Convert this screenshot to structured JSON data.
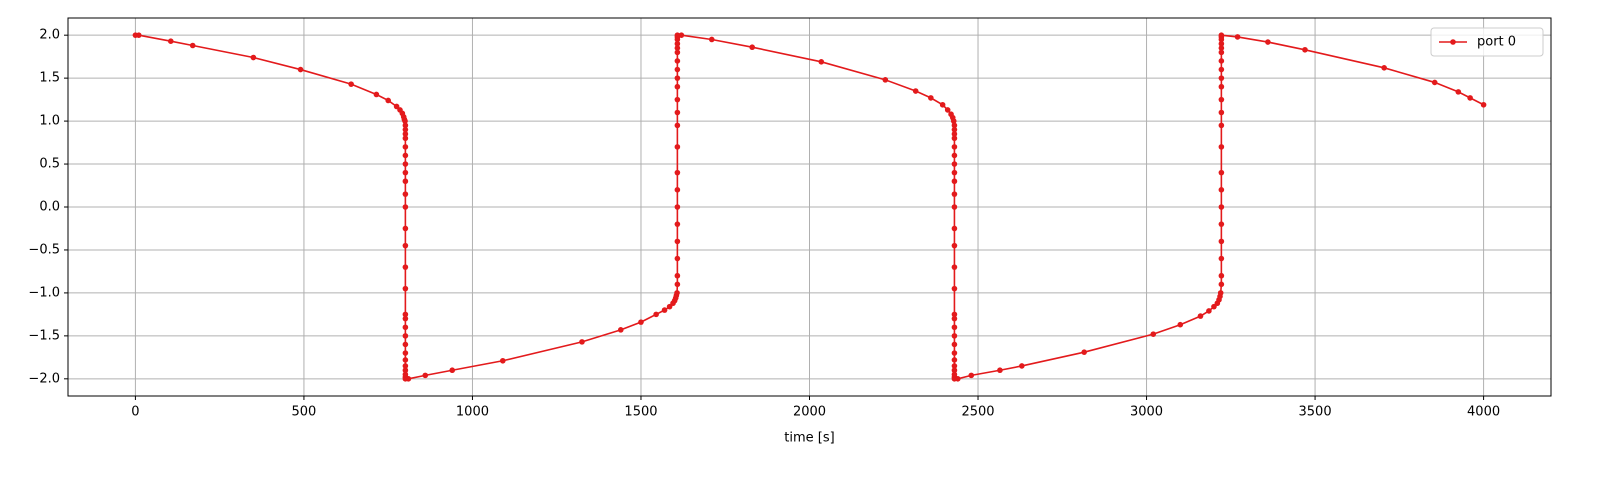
{
  "chart_data": {
    "type": "line",
    "xlabel": "time [s]",
    "x": [
      0,
      10,
      105,
      170,
      350,
      490,
      640,
      715,
      750,
      775,
      785,
      792,
      796,
      798,
      800,
      801,
      801,
      801,
      801,
      801,
      801,
      801,
      801,
      801,
      801,
      801,
      801,
      801,
      801,
      801,
      801,
      801,
      801,
      801,
      801,
      801,
      801,
      801,
      801,
      801,
      801,
      801,
      810,
      860,
      940,
      1090,
      1325,
      1440,
      1500,
      1545,
      1570,
      1585,
      1595,
      1600,
      1603,
      1605,
      1607,
      1608,
      1608,
      1608,
      1608,
      1608,
      1608,
      1608,
      1608,
      1608,
      1608,
      1608,
      1608,
      1608,
      1608,
      1608,
      1608,
      1608,
      1608,
      1608,
      1608,
      1608,
      1608,
      1620,
      1710,
      1830,
      2035,
      2225,
      2315,
      2360,
      2395,
      2410,
      2420,
      2425,
      2428,
      2430,
      2430,
      2430,
      2430,
      2430,
      2430,
      2430,
      2430,
      2430,
      2430,
      2430,
      2430,
      2430,
      2430,
      2430,
      2430,
      2430,
      2430,
      2430,
      2430,
      2430,
      2430,
      2430,
      2430,
      2430,
      2430,
      2430,
      2440,
      2480,
      2565,
      2630,
      2815,
      3020,
      3100,
      3160,
      3185,
      3200,
      3210,
      3215,
      3218,
      3220,
      3222,
      3222,
      3222,
      3222,
      3222,
      3222,
      3222,
      3222,
      3222,
      3222,
      3222,
      3222,
      3222,
      3222,
      3222,
      3222,
      3222,
      3222,
      3222,
      3222,
      3222,
      3222,
      3270,
      3360,
      3470,
      3705,
      3855,
      3925,
      3960,
      4000
    ],
    "series": [
      {
        "name": "port 0",
        "color": "#e31a1c",
        "values": [
          2.0,
          2.0,
          1.93,
          1.88,
          1.74,
          1.6,
          1.43,
          1.31,
          1.24,
          1.17,
          1.13,
          1.09,
          1.05,
          1.02,
          1.0,
          0.95,
          0.9,
          0.85,
          0.8,
          0.7,
          0.6,
          0.5,
          0.4,
          0.3,
          0.15,
          0.0,
          -0.25,
          -0.45,
          -0.7,
          -0.95,
          -1.25,
          -1.3,
          -1.4,
          -1.5,
          -1.6,
          -1.7,
          -1.78,
          -1.85,
          -1.9,
          -1.95,
          -1.98,
          -2.0,
          -2.0,
          -1.96,
          -1.9,
          -1.79,
          -1.57,
          -1.43,
          -1.34,
          -1.25,
          -1.2,
          -1.16,
          -1.12,
          -1.09,
          -1.06,
          -1.03,
          -1.0,
          -0.9,
          -0.8,
          -0.6,
          -0.4,
          -0.2,
          0.0,
          0.2,
          0.4,
          0.7,
          0.95,
          1.1,
          1.25,
          1.4,
          1.5,
          1.6,
          1.7,
          1.8,
          1.85,
          1.9,
          1.95,
          1.98,
          2.0,
          2.0,
          1.95,
          1.86,
          1.69,
          1.48,
          1.35,
          1.27,
          1.19,
          1.13,
          1.08,
          1.04,
          1.0,
          0.95,
          0.9,
          0.85,
          0.8,
          0.7,
          0.6,
          0.5,
          0.4,
          0.3,
          0.15,
          0.0,
          -0.25,
          -0.45,
          -0.7,
          -0.95,
          -1.25,
          -1.3,
          -1.4,
          -1.5,
          -1.6,
          -1.7,
          -1.78,
          -1.85,
          -1.9,
          -1.95,
          -1.98,
          -2.0,
          -2.0,
          -1.96,
          -1.9,
          -1.85,
          -1.69,
          -1.48,
          -1.37,
          -1.27,
          -1.21,
          -1.16,
          -1.12,
          -1.08,
          -1.04,
          -1.0,
          -0.9,
          -0.8,
          -0.6,
          -0.4,
          -0.2,
          0.0,
          0.2,
          0.4,
          0.7,
          0.95,
          1.1,
          1.25,
          1.4,
          1.5,
          1.6,
          1.7,
          1.8,
          1.85,
          1.9,
          1.95,
          1.98,
          2.0,
          1.98,
          1.92,
          1.83,
          1.62,
          1.45,
          1.34,
          1.27,
          1.19
        ]
      }
    ],
    "xlim": [
      -200,
      4200
    ],
    "xticks": [
      0,
      500,
      1000,
      1500,
      2000,
      2500,
      3000,
      3500,
      4000
    ],
    "ylim": [
      -2.2,
      2.2
    ],
    "yticks": [
      {
        "value": -2,
        "label": "−2.0"
      },
      {
        "value": -1.5,
        "label": "−1.5"
      },
      {
        "value": -1,
        "label": "−1.0"
      },
      {
        "value": -0.5,
        "label": "−0.5"
      },
      {
        "value": 0,
        "label": "0.0"
      },
      0.5,
      {
        "value": 1,
        "label": "1.0"
      },
      1.5,
      {
        "value": 2,
        "label": "2.0"
      }
    ],
    "grid": true,
    "legend": "upper right"
  }
}
